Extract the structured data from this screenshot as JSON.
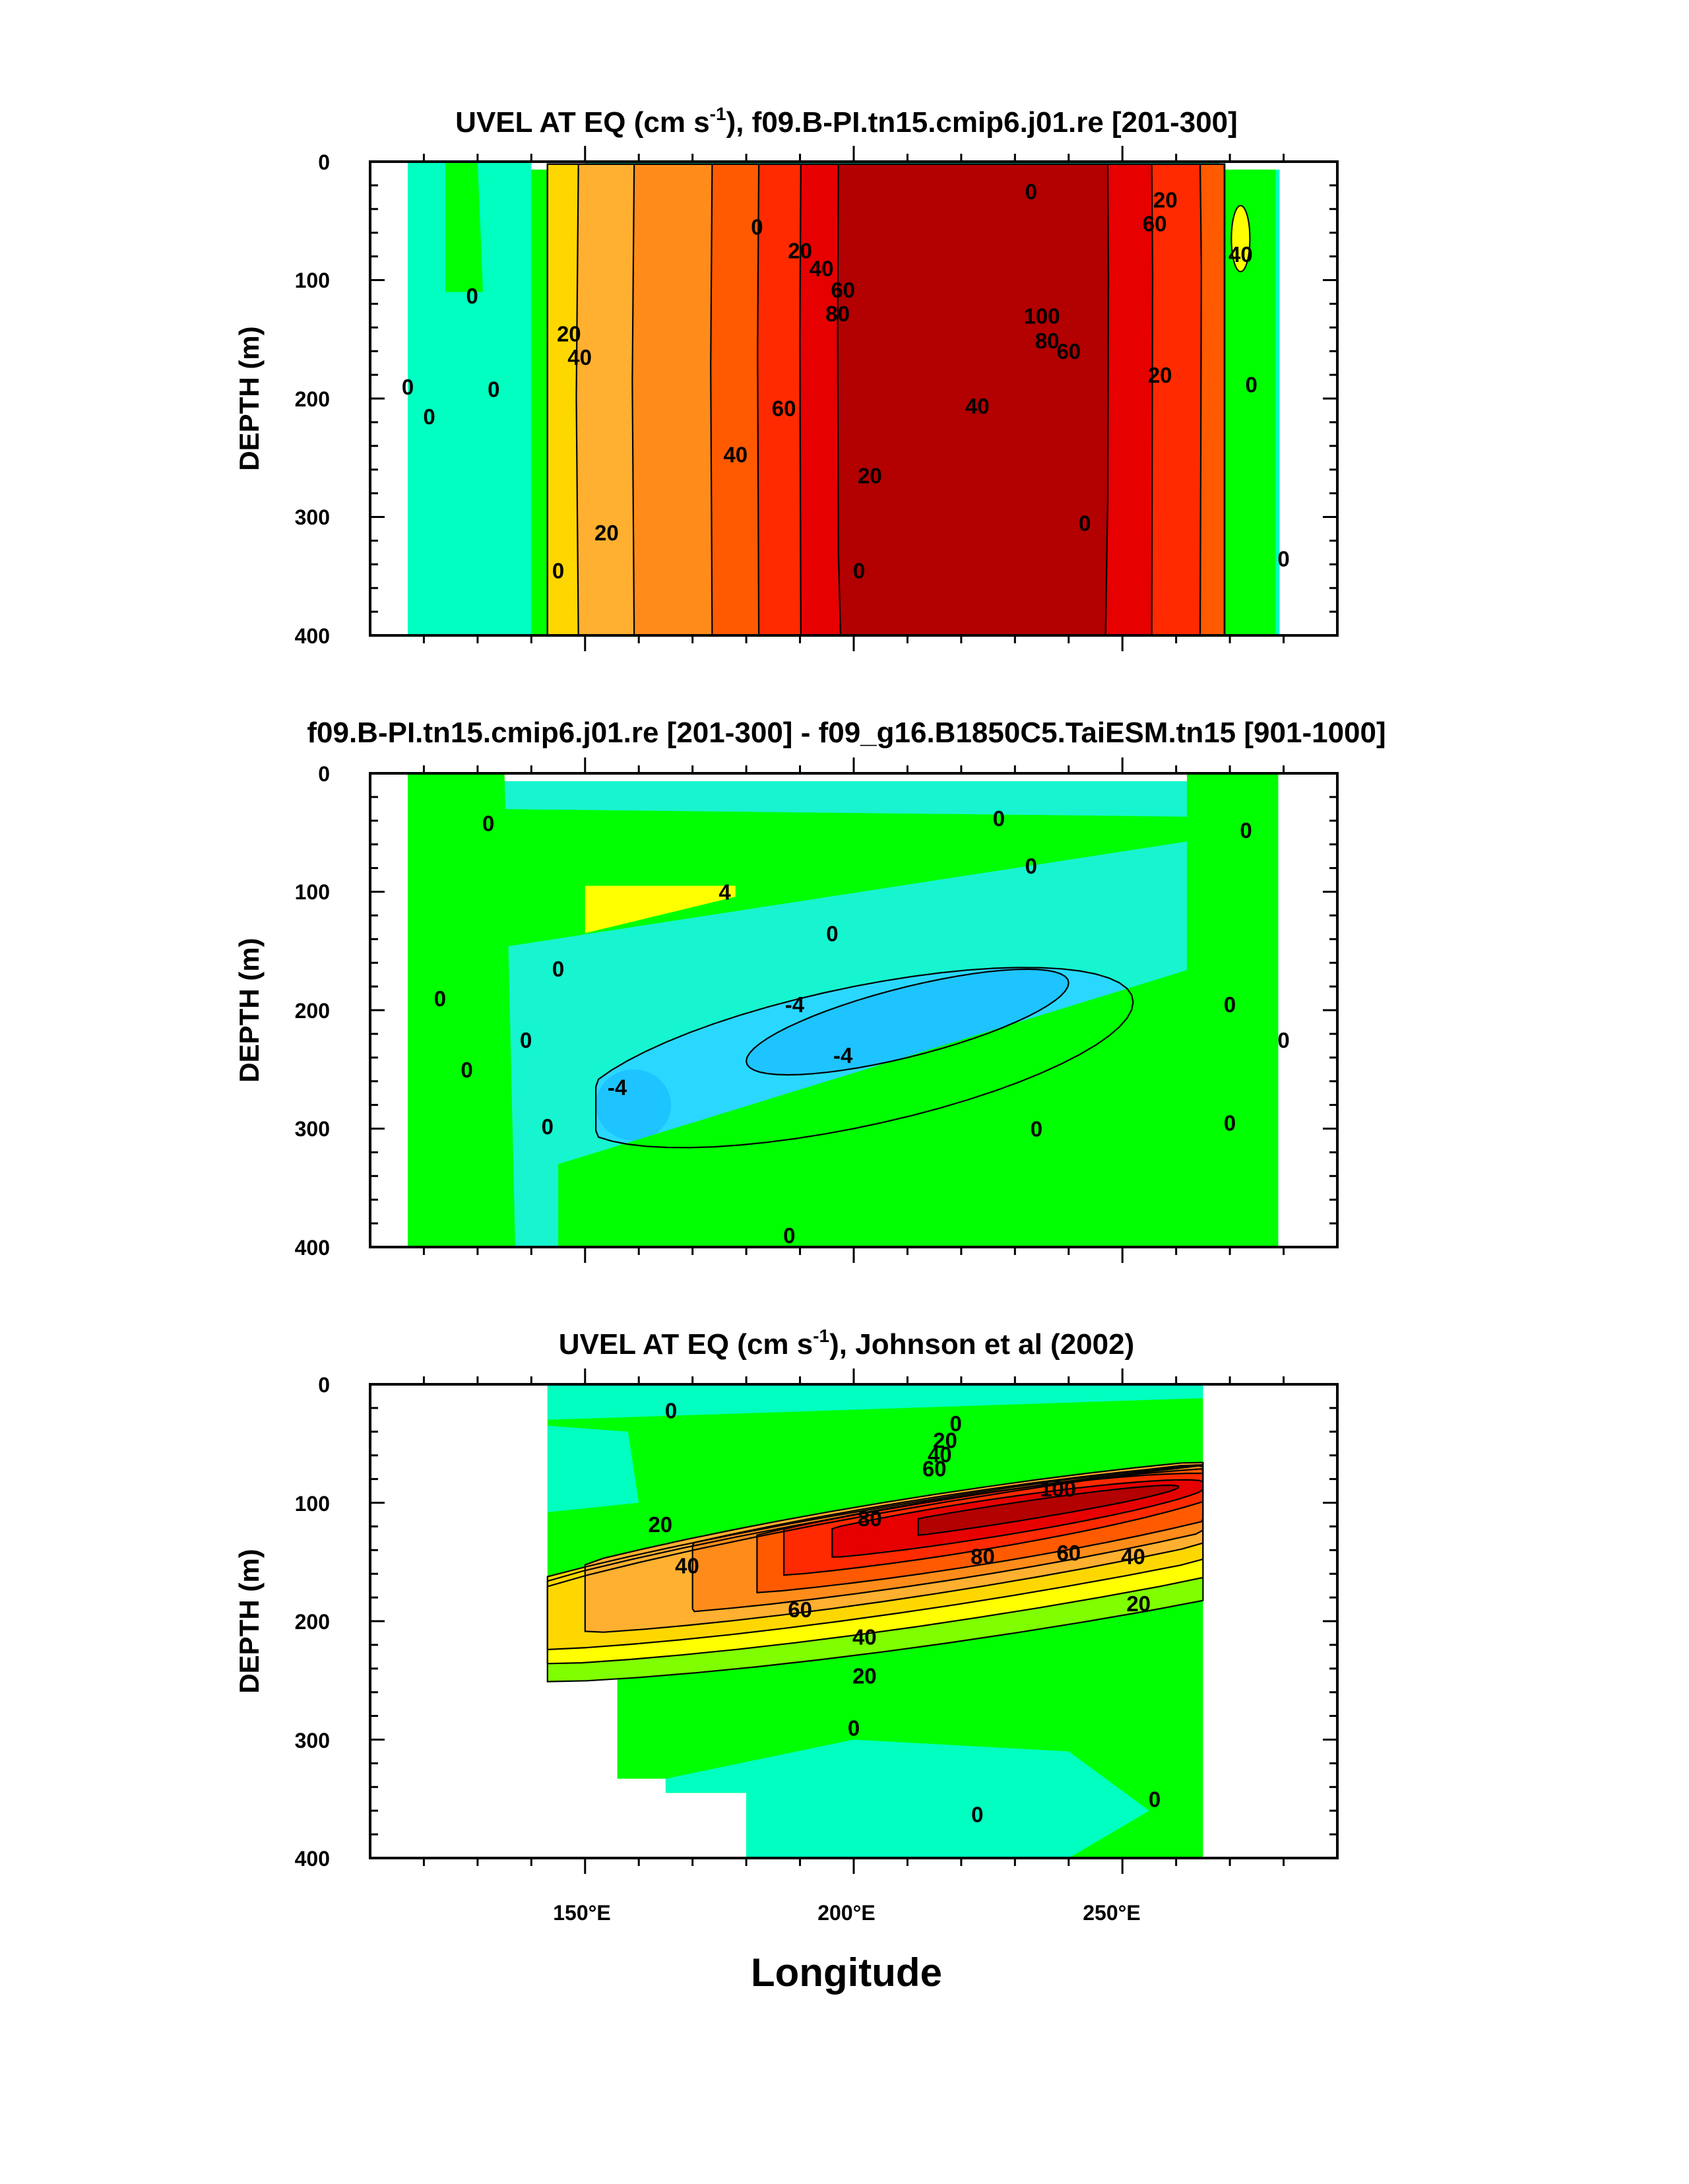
{
  "chart_data": [
    {
      "type": "contour",
      "title_main": "UVEL AT EQ (cm s",
      "title_sup": "-1",
      "title_rest": "), f09.B-PI.tn15.cmip6.j01.re [201-300]",
      "ylabel": "DEPTH (m)",
      "xlim": [
        110,
        290
      ],
      "ylim": [
        0,
        400
      ],
      "data_lon": [
        117,
        279
      ],
      "yticks": [
        "0",
        "100",
        "200",
        "300",
        "400"
      ],
      "core": {
        "lon": 228,
        "depth": 118,
        "max": 100
      },
      "contour_levels": [
        -10,
        0,
        10,
        20,
        30,
        40,
        50,
        60,
        70,
        80,
        90,
        100
      ],
      "contour_labels": [
        {
          "text": "0",
          "lon": 182,
          "depth": 55
        },
        {
          "text": "0",
          "lon": 233,
          "depth": 25
        },
        {
          "text": "20",
          "lon": 258,
          "depth": 32
        },
        {
          "text": "60",
          "lon": 256,
          "depth": 52
        },
        {
          "text": "20",
          "lon": 190,
          "depth": 75
        },
        {
          "text": "40",
          "lon": 194,
          "depth": 90
        },
        {
          "text": "60",
          "lon": 198,
          "depth": 108
        },
        {
          "text": "80",
          "lon": 197,
          "depth": 128
        },
        {
          "text": "100",
          "lon": 235,
          "depth": 130
        },
        {
          "text": "80",
          "lon": 236,
          "depth": 151
        },
        {
          "text": "60",
          "lon": 240,
          "depth": 160
        },
        {
          "text": "60",
          "lon": 187,
          "depth": 208
        },
        {
          "text": "40",
          "lon": 223,
          "depth": 206
        },
        {
          "text": "20",
          "lon": 257,
          "depth": 180
        },
        {
          "text": "40",
          "lon": 178,
          "depth": 247
        },
        {
          "text": "20",
          "lon": 203,
          "depth": 265
        },
        {
          "text": "20",
          "lon": 154,
          "depth": 313
        },
        {
          "text": "0",
          "lon": 243,
          "depth": 305
        },
        {
          "text": "0",
          "lon": 201,
          "depth": 345
        },
        {
          "text": "0",
          "lon": 129,
          "depth": 113
        },
        {
          "text": "0",
          "lon": 117,
          "depth": 190
        },
        {
          "text": "0",
          "lon": 121,
          "depth": 215
        },
        {
          "text": "0",
          "lon": 133,
          "depth": 192
        },
        {
          "text": "0",
          "lon": 145,
          "depth": 345
        },
        {
          "text": "20",
          "lon": 147,
          "depth": 145
        },
        {
          "text": "40",
          "lon": 149,
          "depth": 165
        },
        {
          "text": "40",
          "lon": 272,
          "depth": 78
        },
        {
          "text": "0",
          "lon": 274,
          "depth": 188
        },
        {
          "text": "0",
          "lon": 280,
          "depth": 335
        }
      ]
    },
    {
      "type": "contour",
      "title_main": "f09.B-PI.tn15.cmip6.j01.re [201-300] - f09_g16.B1850C5.TaiESM.tn15 [901-1000]",
      "ylabel": "DEPTH (m)",
      "xlim": [
        110,
        290
      ],
      "ylim": [
        0,
        400
      ],
      "data_lon": [
        117,
        279
      ],
      "yticks": [
        "0",
        "100",
        "200",
        "300",
        "400"
      ],
      "contour_levels": [
        -8,
        -4,
        0,
        4
      ],
      "contour_labels": [
        {
          "text": "0",
          "lon": 132,
          "depth": 42
        },
        {
          "text": "0",
          "lon": 227,
          "depth": 38
        },
        {
          "text": "0",
          "lon": 233,
          "depth": 78
        },
        {
          "text": "0",
          "lon": 273,
          "depth": 48
        },
        {
          "text": "4",
          "lon": 176,
          "depth": 100
        },
        {
          "text": "0",
          "lon": 196,
          "depth": 135
        },
        {
          "text": "-4",
          "lon": 189,
          "depth": 195
        },
        {
          "text": "-4",
          "lon": 198,
          "depth": 238
        },
        {
          "text": "-4",
          "lon": 156,
          "depth": 265
        },
        {
          "text": "0",
          "lon": 145,
          "depth": 165
        },
        {
          "text": "0",
          "lon": 123,
          "depth": 190
        },
        {
          "text": "0",
          "lon": 139,
          "depth": 225
        },
        {
          "text": "0",
          "lon": 128,
          "depth": 250
        },
        {
          "text": "0",
          "lon": 143,
          "depth": 298
        },
        {
          "text": "0",
          "lon": 234,
          "depth": 300
        },
        {
          "text": "0",
          "lon": 270,
          "depth": 195
        },
        {
          "text": "0",
          "lon": 280,
          "depth": 225
        },
        {
          "text": "0",
          "lon": 270,
          "depth": 295
        },
        {
          "text": "0",
          "lon": 188,
          "depth": 390
        }
      ]
    },
    {
      "type": "contour",
      "title_main": "UVEL AT EQ (cm s",
      "title_sup": "-1",
      "title_rest": "), Johnson et al (2002)",
      "ylabel": "DEPTH (m)",
      "xlabel": "Longitude",
      "xlim": [
        110,
        290
      ],
      "ylim": [
        0,
        400
      ],
      "data_lon": [
        143,
        265
      ],
      "xticks": [
        "150°E",
        "200°E",
        "250°E"
      ],
      "yticks": [
        "0",
        "100",
        "200",
        "300",
        "400"
      ],
      "core": {
        "lon": 232,
        "depth": 95,
        "max": 100
      },
      "contour_levels": [
        -10,
        0,
        10,
        20,
        30,
        40,
        50,
        60,
        70,
        80,
        90,
        100
      ],
      "contour_labels": [
        {
          "text": "0",
          "lon": 166,
          "depth": 22
        },
        {
          "text": "0",
          "lon": 219,
          "depth": 33
        },
        {
          "text": "20",
          "lon": 217,
          "depth": 47
        },
        {
          "text": "40",
          "lon": 216,
          "depth": 59
        },
        {
          "text": "60",
          "lon": 215,
          "depth": 71
        },
        {
          "text": "100",
          "lon": 238,
          "depth": 88
        },
        {
          "text": "80",
          "lon": 203,
          "depth": 113
        },
        {
          "text": "80",
          "lon": 224,
          "depth": 145
        },
        {
          "text": "60",
          "lon": 240,
          "depth": 142
        },
        {
          "text": "40",
          "lon": 252,
          "depth": 145
        },
        {
          "text": "20",
          "lon": 164,
          "depth": 118
        },
        {
          "text": "40",
          "lon": 169,
          "depth": 153
        },
        {
          "text": "60",
          "lon": 190,
          "depth": 190
        },
        {
          "text": "40",
          "lon": 202,
          "depth": 213
        },
        {
          "text": "20",
          "lon": 253,
          "depth": 185
        },
        {
          "text": "20",
          "lon": 202,
          "depth": 246
        },
        {
          "text": "0",
          "lon": 200,
          "depth": 290
        },
        {
          "text": "0",
          "lon": 223,
          "depth": 363
        },
        {
          "text": "0",
          "lon": 256,
          "depth": 350
        }
      ]
    }
  ]
}
